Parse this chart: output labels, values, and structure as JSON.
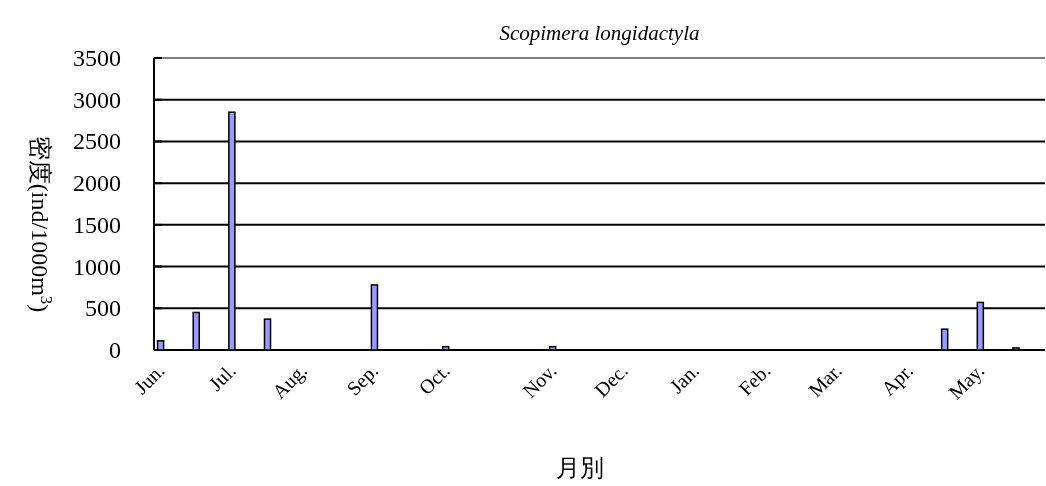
{
  "chart_data": {
    "type": "bar",
    "title": "Scopimera longidactyla",
    "xlabel": "月別",
    "ylabel": "密度(ind/1000m$^{3}$)",
    "categories": [
      "Jun.",
      null,
      "Jul.",
      null,
      "Aug.",
      null,
      "Sep.",
      null,
      "Oct.",
      null,
      null,
      "Nov.",
      null,
      "Dec.",
      null,
      "Jan.",
      null,
      "Feb.",
      null,
      "Mar.",
      null,
      "Apr.",
      null,
      "May.",
      null
    ],
    "values": [
      110,
      450,
      2850,
      370,
      null,
      null,
      780,
      null,
      40,
      null,
      null,
      40,
      null,
      null,
      null,
      null,
      null,
      null,
      null,
      null,
      null,
      null,
      250,
      570,
      25
    ],
    "color": "#9999ff",
    "ylim": [
      0,
      3500
    ],
    "yticks": [
      0,
      500,
      1000,
      1500,
      2000,
      2500,
      3000,
      3500
    ],
    "grid": "y"
  }
}
